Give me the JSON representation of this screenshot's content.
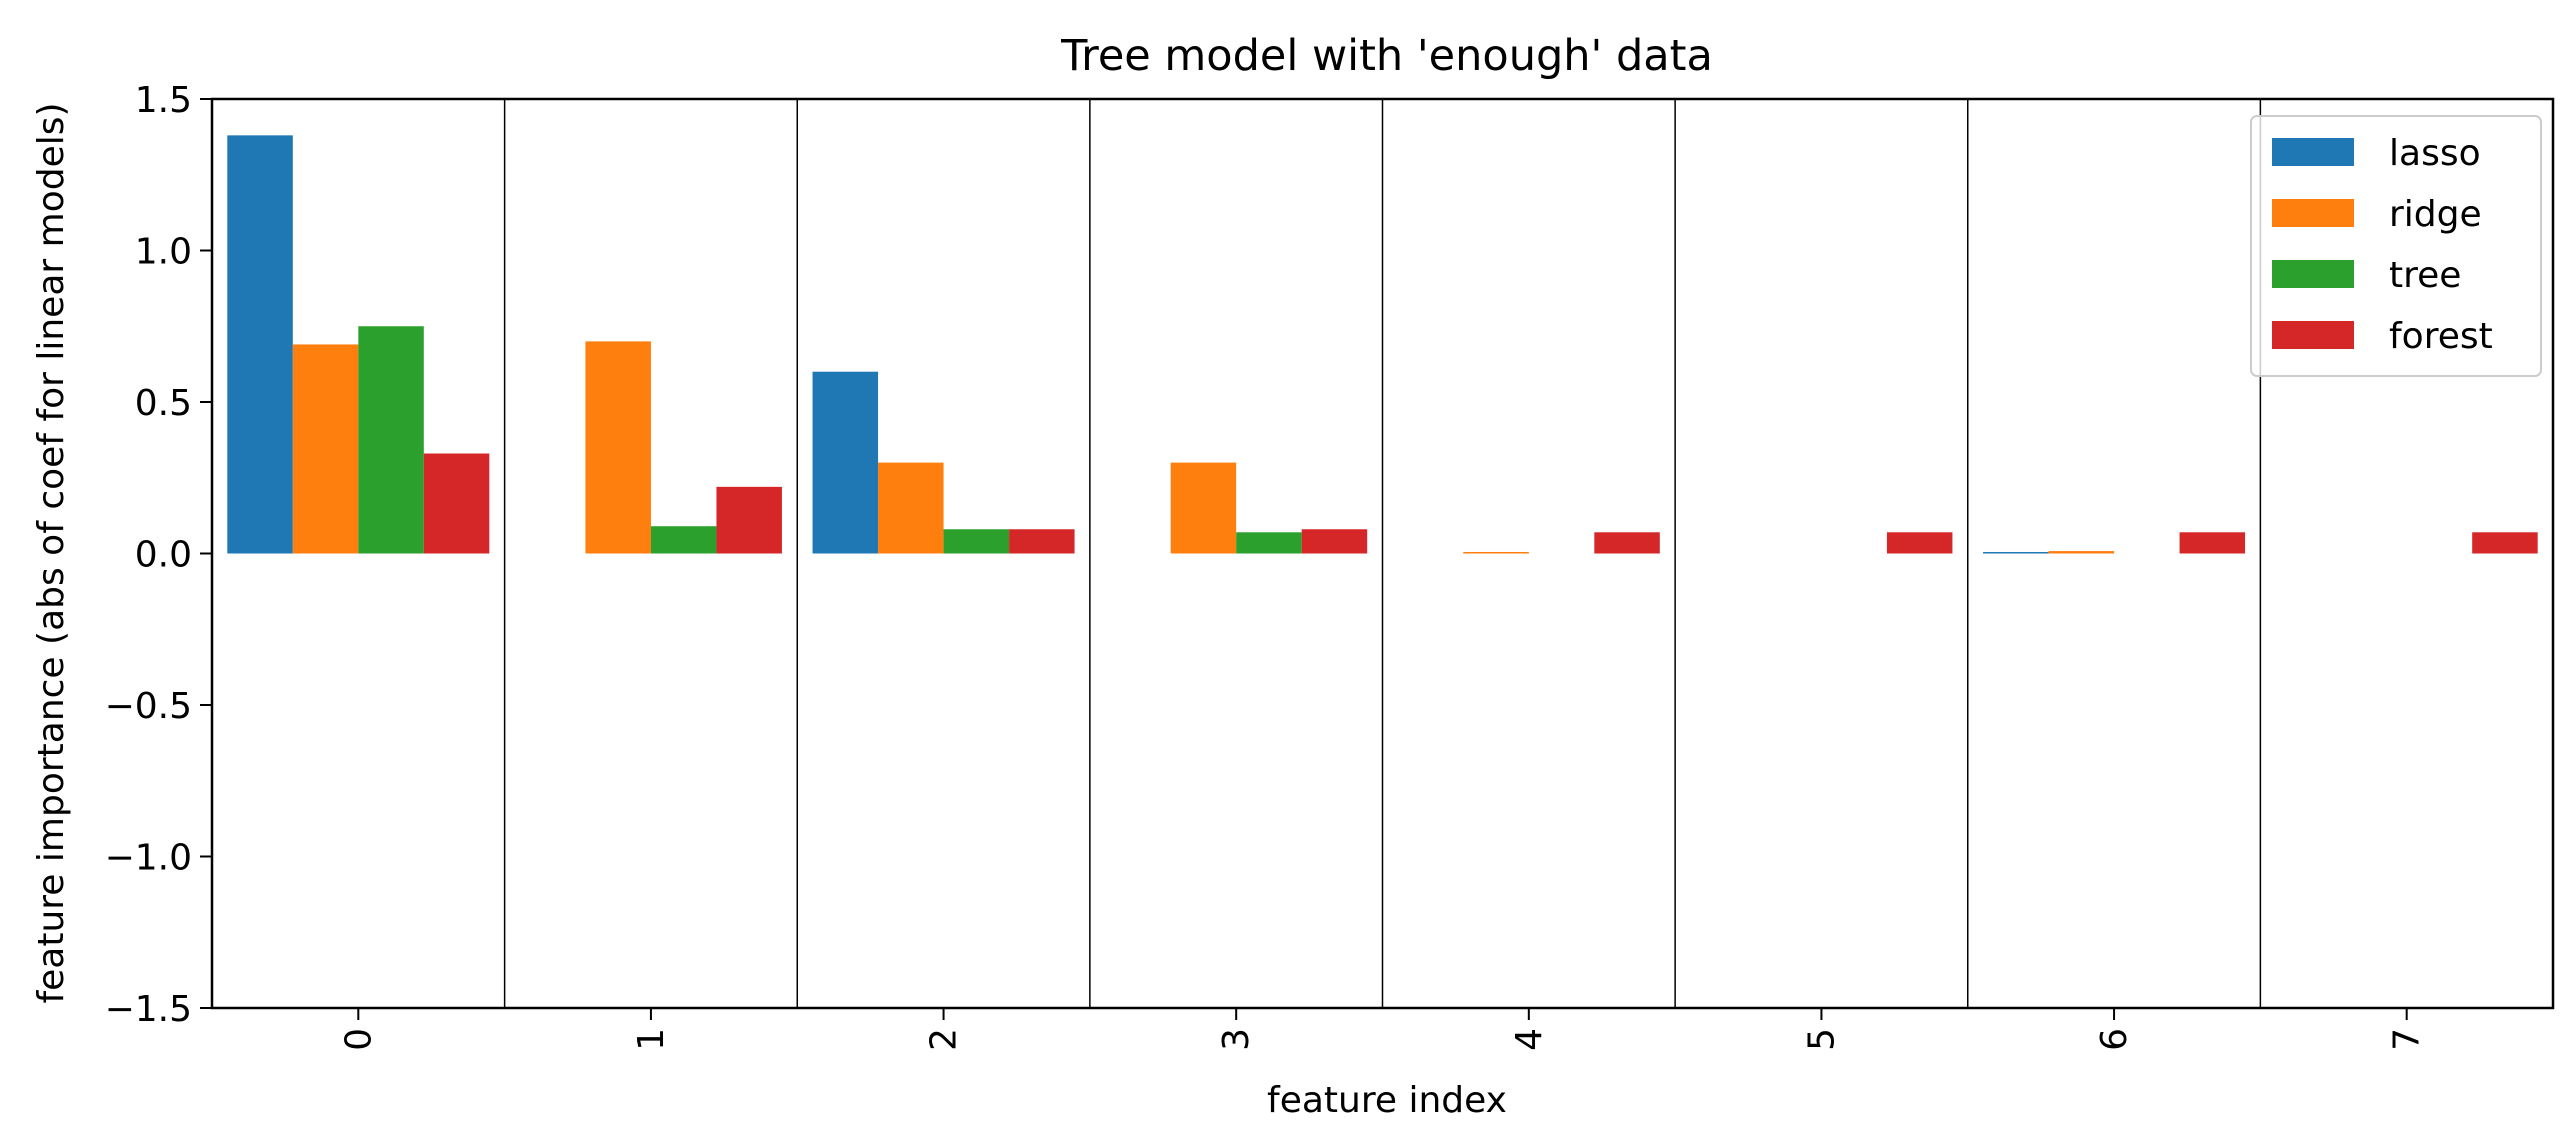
{
  "chart_data": {
    "type": "bar",
    "title": "Tree model with 'enough' data",
    "xlabel": "feature index",
    "ylabel": "feature importance (abs of coef for linear models)",
    "ylim": [
      -1.5,
      1.5
    ],
    "yticks": [
      -1.5,
      -1.0,
      -0.5,
      0.0,
      0.5,
      1.0,
      1.5
    ],
    "ytick_labels": [
      "−1.5",
      "−1.0",
      "−0.5",
      "0.0",
      "0.5",
      "1.0",
      "1.5"
    ],
    "categories": [
      "0",
      "1",
      "2",
      "3",
      "4",
      "5",
      "6",
      "7"
    ],
    "series": [
      {
        "name": "lasso",
        "color": "#1f77b4",
        "values": [
          1.38,
          0.0,
          0.6,
          0.0,
          0.0,
          0.0,
          0.005,
          0.0
        ]
      },
      {
        "name": "ridge",
        "color": "#ff7f0e",
        "values": [
          0.69,
          0.7,
          0.3,
          0.3,
          0.005,
          0.0,
          0.008,
          0.0
        ]
      },
      {
        "name": "tree",
        "color": "#2ca02c",
        "values": [
          0.75,
          0.09,
          0.08,
          0.07,
          0.0,
          0.0,
          0.0,
          0.0
        ]
      },
      {
        "name": "forest",
        "color": "#d62728",
        "values": [
          0.33,
          0.22,
          0.08,
          0.08,
          0.07,
          0.07,
          0.07,
          0.07
        ]
      }
    ],
    "legend_position": "top-right",
    "vertical_separators": true,
    "grid": false,
    "xtick_rotation": "vertical"
  }
}
